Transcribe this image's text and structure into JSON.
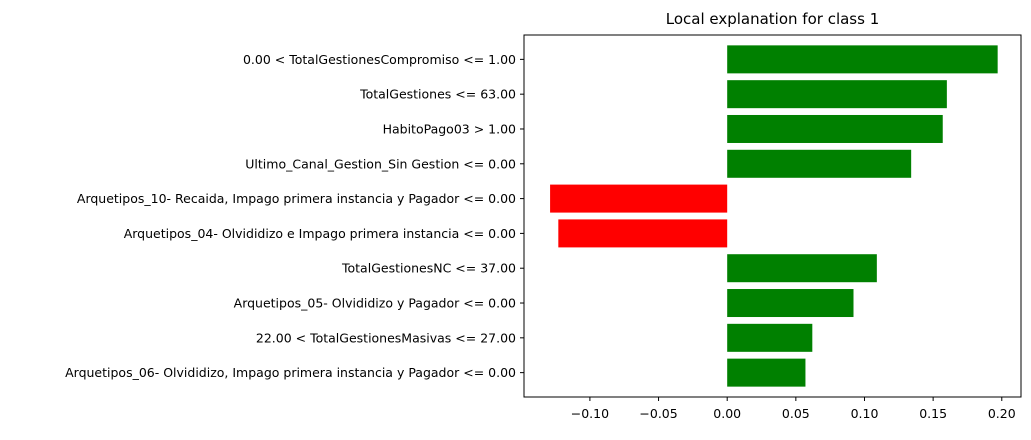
{
  "chart_data": {
    "type": "bar",
    "orientation": "horizontal",
    "title": "Local explanation for class 1",
    "xlabel": "",
    "ylabel": "",
    "xlim": [
      -0.148,
      0.214
    ],
    "grid": false,
    "legend": "none",
    "colors": {
      "positive": "#008000",
      "negative": "#ff0000"
    },
    "categories": [
      "0.00 < TotalGestionesCompromiso <= 1.00",
      "TotalGestiones <= 63.00",
      "HabitoPago03 > 1.00",
      "Ultimo_Canal_Gestion_Sin Gestion <= 0.00",
      "Arquetipos_10- Recaida, Impago primera instancia y Pagador <= 0.00",
      "Arquetipos_04- Olvididizo e Impago primera instancia <= 0.00",
      "TotalGestionesNC <= 37.00",
      "Arquetipos_05- Olvididizo y Pagador <= 0.00",
      "22.00 < TotalGestionesMasivas <= 27.00",
      "Arquetipos_06- Olvididizo, Impago primera instancia y Pagador <= 0.00"
    ],
    "values": [
      0.197,
      0.16,
      0.157,
      0.134,
      -0.129,
      -0.123,
      0.109,
      0.092,
      0.062,
      0.057
    ],
    "xticks": [
      -0.1,
      -0.05,
      0.0,
      0.05,
      0.1,
      0.15,
      0.2
    ],
    "xtick_labels": [
      "−0.10",
      "−0.05",
      "0.00",
      "0.05",
      "0.10",
      "0.15",
      "0.20"
    ]
  }
}
